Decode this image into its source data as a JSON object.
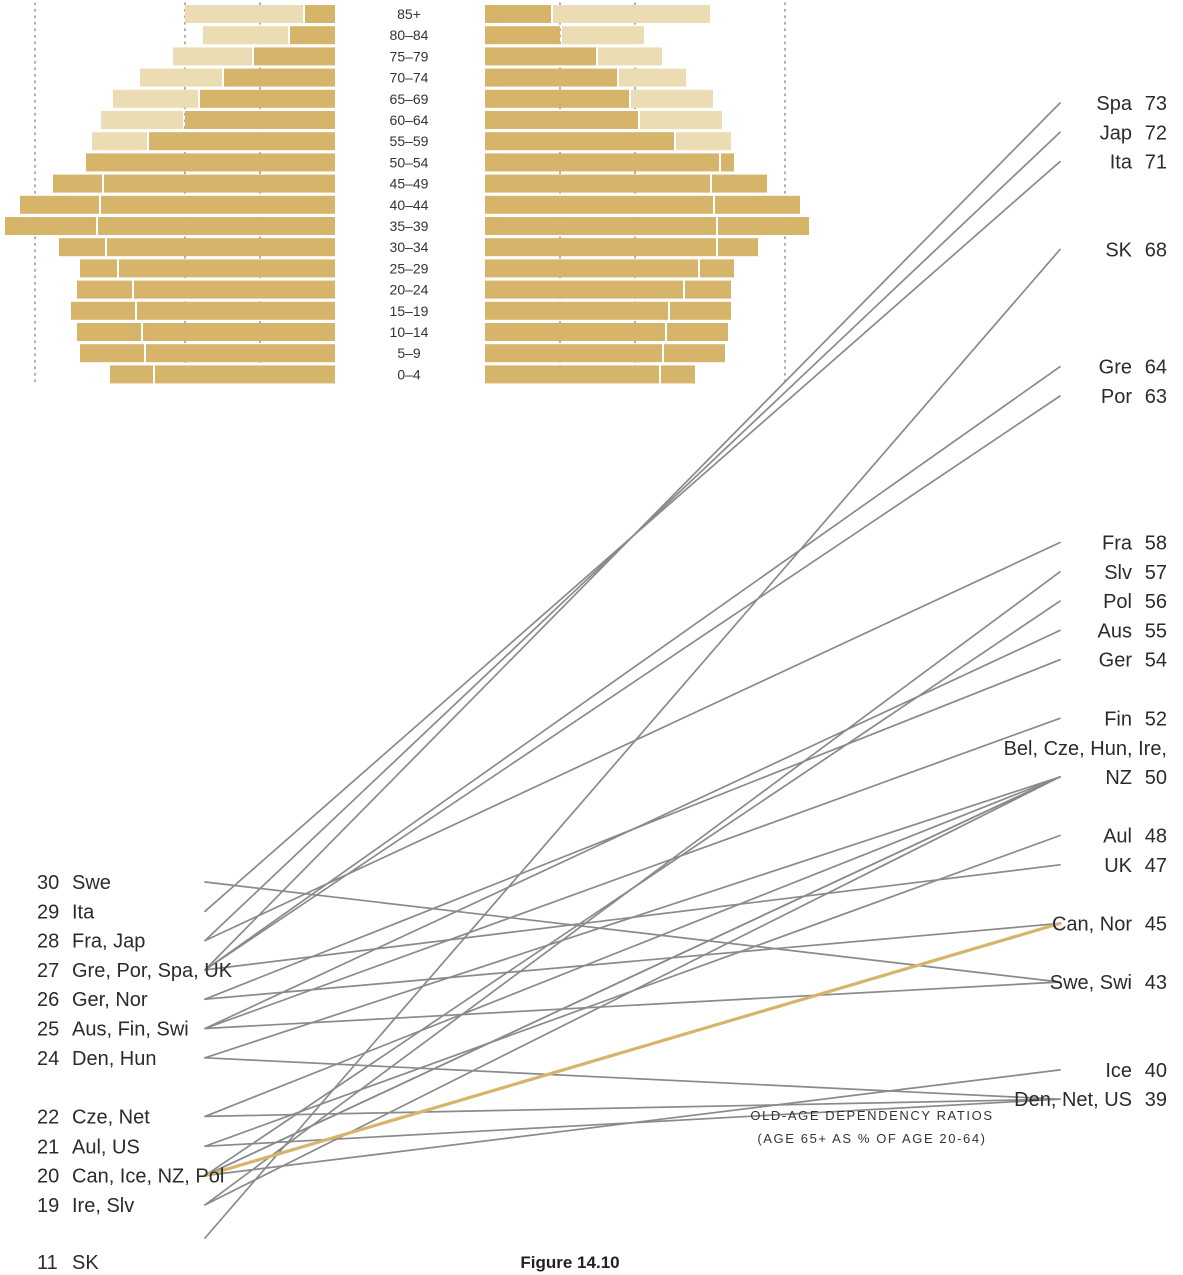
{
  "chart_data": [
    {
      "type": "bar",
      "subtype": "population-pyramid",
      "categories": [
        "85+",
        "80–84",
        "75–79",
        "70–74",
        "65–69",
        "60–64",
        "55–59",
        "50–54",
        "45–49",
        "40–44",
        "35–39",
        "30–34",
        "25–29",
        "20–24",
        "15–19",
        "10–14",
        "5–9",
        "0–4"
      ],
      "left_side": {
        "current": [
          1.0,
          1.5,
          2.7,
          3.7,
          4.5,
          5.0,
          6.2,
          8.3,
          7.7,
          7.8,
          7.9,
          7.6,
          7.2,
          6.7,
          6.6,
          6.4,
          6.3,
          6.0
        ],
        "future": [
          5.0,
          4.4,
          5.4,
          6.5,
          7.4,
          7.8,
          8.1,
          8.3,
          9.4,
          10.5,
          11.0,
          9.2,
          8.5,
          8.6,
          8.8,
          8.6,
          8.5,
          7.5
        ]
      },
      "right_side": {
        "current": [
          2.2,
          2.5,
          3.7,
          4.4,
          4.8,
          5.1,
          6.3,
          7.8,
          7.5,
          7.6,
          7.7,
          7.7,
          7.1,
          6.6,
          6.1,
          6.0,
          5.9,
          5.8
        ],
        "future": [
          7.5,
          5.3,
          5.9,
          6.7,
          7.6,
          7.9,
          8.2,
          8.3,
          9.4,
          10.5,
          10.8,
          9.1,
          8.3,
          8.2,
          8.2,
          8.1,
          8.0,
          7.0
        ]
      },
      "gridlines": [
        2.5,
        5,
        10
      ]
    },
    {
      "type": "slope",
      "title": "OLD-AGE DEPENDENCY RATIOS",
      "subtitle": "(AGE 65+ AS % OF AGE 20-64)",
      "highlight_color": "#d6b46a",
      "line_color": "#8a8a8a",
      "left_labels": [
        {
          "value": 30,
          "label": "Swe"
        },
        {
          "value": 29,
          "label": "Ita"
        },
        {
          "value": 28,
          "label": "Fra, Jap"
        },
        {
          "value": 27,
          "label": "Gre, Por, Spa, UK"
        },
        {
          "value": 26,
          "label": "Ger, Nor"
        },
        {
          "value": 25,
          "label": "Aus, Fin, Swi"
        },
        {
          "value": 24,
          "label": "Den, Hun"
        },
        {
          "value": 22,
          "label": "Cze, Net"
        },
        {
          "value": 21,
          "label": "Aul, US"
        },
        {
          "value": 20,
          "label": "Can, Ice, NZ, Pol"
        },
        {
          "value": 19,
          "label": "Ire, Slv"
        },
        {
          "value": 11,
          "label": "SK"
        }
      ],
      "right_labels": [
        {
          "value": 73,
          "label": "Spa"
        },
        {
          "value": 72,
          "label": "Jap"
        },
        {
          "value": 71,
          "label": "Ita"
        },
        {
          "value": 68,
          "label": "SK"
        },
        {
          "value": 64,
          "label": "Gre"
        },
        {
          "value": 63,
          "label": "Por"
        },
        {
          "value": 58,
          "label": "Fra"
        },
        {
          "value": 57,
          "label": "Slv"
        },
        {
          "value": 56,
          "label": "Pol"
        },
        {
          "value": 55,
          "label": "Aus"
        },
        {
          "value": 54,
          "label": "Ger"
        },
        {
          "value": 52,
          "label": "Fin"
        },
        {
          "value": 50,
          "label": "Bel, Cze, Hun, Ire,",
          "label2": "NZ"
        },
        {
          "value": 48,
          "label": "Aul"
        },
        {
          "value": 47,
          "label": "UK"
        },
        {
          "value": 45,
          "label": "Can, Nor"
        },
        {
          "value": 43,
          "label": "Swe, Swi"
        },
        {
          "value": 40,
          "label": "Ice"
        },
        {
          "value": 39,
          "label": "Den, Net, US"
        }
      ],
      "series": [
        {
          "name": "Spa",
          "from": 27,
          "to": 73
        },
        {
          "name": "Jap",
          "from": 28,
          "to": 72
        },
        {
          "name": "Ita",
          "from": 29,
          "to": 71
        },
        {
          "name": "SK",
          "from": 11,
          "to": 68
        },
        {
          "name": "Gre",
          "from": 27,
          "to": 64
        },
        {
          "name": "Por",
          "from": 27,
          "to": 63
        },
        {
          "name": "Fra",
          "from": 28,
          "to": 58
        },
        {
          "name": "Slv",
          "from": 19,
          "to": 57
        },
        {
          "name": "Pol",
          "from": 20,
          "to": 56
        },
        {
          "name": "Aus",
          "from": 25,
          "to": 55
        },
        {
          "name": "Ger",
          "from": 26,
          "to": 54
        },
        {
          "name": "Fin",
          "from": 25,
          "to": 52
        },
        {
          "name": "Bel",
          "from": 20,
          "to": 50
        },
        {
          "name": "Cze",
          "from": 22,
          "to": 50
        },
        {
          "name": "Hun",
          "from": 24,
          "to": 50
        },
        {
          "name": "Ire",
          "from": 19,
          "to": 50
        },
        {
          "name": "NZ",
          "from": 20,
          "to": 50
        },
        {
          "name": "Aul",
          "from": 21,
          "to": 48
        },
        {
          "name": "UK",
          "from": 27,
          "to": 47
        },
        {
          "name": "Can",
          "from": 20,
          "to": 45,
          "highlight": true
        },
        {
          "name": "Nor",
          "from": 26,
          "to": 45
        },
        {
          "name": "Swe",
          "from": 30,
          "to": 43
        },
        {
          "name": "Swi",
          "from": 25,
          "to": 43
        },
        {
          "name": "Ice",
          "from": 20,
          "to": 40
        },
        {
          "name": "Den",
          "from": 24,
          "to": 39
        },
        {
          "name": "Net",
          "from": 22,
          "to": 39
        },
        {
          "name": "US",
          "from": 21,
          "to": 39
        }
      ]
    }
  ],
  "caption": "Figure 14.10"
}
